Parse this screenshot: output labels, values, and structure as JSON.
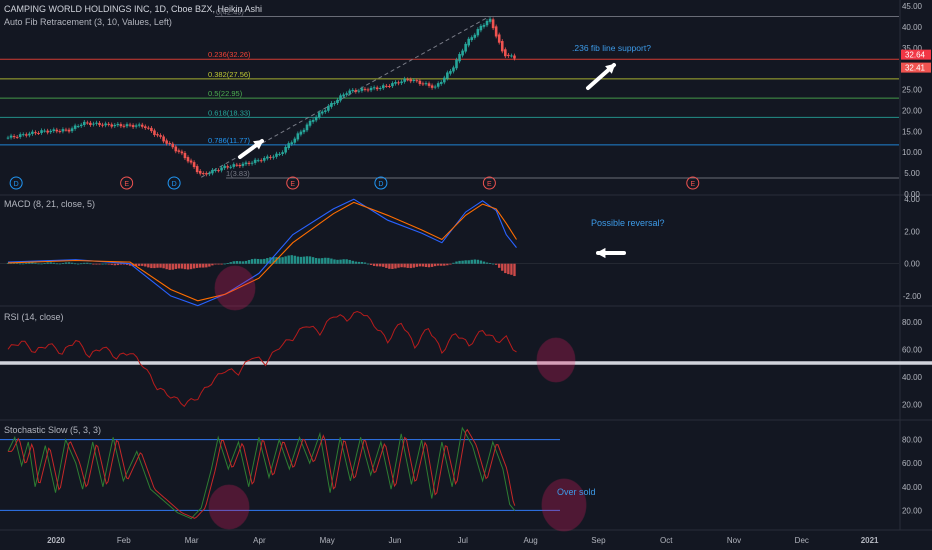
{
  "header": {
    "symbol_line": "CAMPING WORLD HOLDINGS INC, 1D, Cboe BZX, Heikin Ashi",
    "fib_label": "Auto Fib Retracement (3, 10, Values, Left)"
  },
  "colors": {
    "background": "#131722",
    "up": "#26a69a",
    "down": "#ef5350",
    "macd_line": "#2962ff",
    "signal_line": "#ff6d00",
    "rsi_line": "#b71c1c",
    "stoch_k": "#2e7d32",
    "stoch_d": "#c62828",
    "band": "#3179f5",
    "annotation": "#3d9be9",
    "highlight_circle": "#e91e63"
  },
  "chart_data": [
    {
      "type": "candlestick",
      "pane": "price",
      "ylim": [
        0,
        45
      ],
      "y_ticks": [
        "45.00",
        "40.00",
        "35.00",
        "30.00",
        "25.00",
        "20.00",
        "15.00",
        "10.00",
        "5.00",
        "0.00"
      ],
      "x_ticks": [
        "2020",
        "Feb",
        "Mar",
        "Apr",
        "May",
        "Jun",
        "Jul",
        "Aug",
        "Sep",
        "Oct",
        "Nov",
        "Dec",
        "2021"
      ],
      "price_labels": [
        {
          "text": "32.64",
          "value": 32.64
        },
        {
          "text": "32.41",
          "value": 32.41
        }
      ],
      "fib_levels": [
        {
          "label": "0(42.49)",
          "value": 42.49,
          "color": "#787b86"
        },
        {
          "label": "0.236(32.26)",
          "value": 32.26,
          "color": "#f44336"
        },
        {
          "label": "0.382(27.56)",
          "value": 27.56,
          "color": "#c0ca33"
        },
        {
          "label": "0.5(22.95)",
          "value": 22.95,
          "color": "#4caf50"
        },
        {
          "label": "0.618(18.33)",
          "value": 18.33,
          "color": "#26a69a"
        },
        {
          "label": "0.786(11.77)",
          "value": 11.77,
          "color": "#2196f3"
        },
        {
          "label": "1(3.83)",
          "value": 3.83,
          "color": "#787b86"
        }
      ],
      "events": [
        {
          "label": "D",
          "month": 0.12,
          "color": "#2196f3"
        },
        {
          "label": "E",
          "month": 1.75,
          "color": "#ef5350"
        },
        {
          "label": "D",
          "month": 2.45,
          "color": "#2196f3"
        },
        {
          "label": "E",
          "month": 4.2,
          "color": "#ef5350"
        },
        {
          "label": "D",
          "month": 5.5,
          "color": "#2196f3"
        },
        {
          "label": "E",
          "month": 7.1,
          "color": "#ef5350"
        },
        {
          "label": "E",
          "month": 10.1,
          "color": "#ef5350"
        }
      ],
      "closes_keypoints": [
        {
          "month": 0.0,
          "value": 13.5
        },
        {
          "month": 0.5,
          "value": 15.0
        },
        {
          "month": 0.9,
          "value": 15.3
        },
        {
          "month": 1.1,
          "value": 17.0
        },
        {
          "month": 1.5,
          "value": 16.5
        },
        {
          "month": 2.0,
          "value": 16.3
        },
        {
          "month": 2.2,
          "value": 14.0
        },
        {
          "month": 2.6,
          "value": 9.0
        },
        {
          "month": 2.85,
          "value": 4.5
        },
        {
          "month": 3.2,
          "value": 6.5
        },
        {
          "month": 3.5,
          "value": 7.2
        },
        {
          "month": 4.0,
          "value": 9.5
        },
        {
          "month": 4.5,
          "value": 18.0
        },
        {
          "month": 5.0,
          "value": 24.5
        },
        {
          "month": 5.5,
          "value": 25.5
        },
        {
          "month": 5.9,
          "value": 27.5
        },
        {
          "month": 6.3,
          "value": 25.5
        },
        {
          "month": 6.55,
          "value": 30.0
        },
        {
          "month": 6.75,
          "value": 36.0
        },
        {
          "month": 7.0,
          "value": 40.5
        },
        {
          "month": 7.1,
          "value": 42.0
        },
        {
          "month": 7.2,
          "value": 38.0
        },
        {
          "month": 7.3,
          "value": 33.5
        },
        {
          "month": 7.5,
          "value": 32.4
        }
      ]
    },
    {
      "type": "line",
      "pane": "macd",
      "title": "MACD (8, 21, close, 5)",
      "ylim": [
        -2.5,
        4.2
      ],
      "y_ticks": [
        "4.00",
        "2.00",
        "0.00",
        "-2.00"
      ],
      "series": [
        {
          "key": "macd",
          "points": [
            {
              "month": 0,
              "value": 0.1
            },
            {
              "month": 1,
              "value": 0.25
            },
            {
              "month": 1.8,
              "value": 0.0
            },
            {
              "month": 2.4,
              "value": -2.0
            },
            {
              "month": 2.8,
              "value": -2.6
            },
            {
              "month": 3.2,
              "value": -1.9
            },
            {
              "month": 3.7,
              "value": -0.6
            },
            {
              "month": 4.2,
              "value": 1.8
            },
            {
              "month": 4.8,
              "value": 3.4
            },
            {
              "month": 5.1,
              "value": 4.0
            },
            {
              "month": 5.6,
              "value": 2.7
            },
            {
              "month": 6.1,
              "value": 1.9
            },
            {
              "month": 6.4,
              "value": 1.3
            },
            {
              "month": 6.75,
              "value": 3.2
            },
            {
              "month": 7.0,
              "value": 3.9
            },
            {
              "month": 7.2,
              "value": 3.3
            },
            {
              "month": 7.35,
              "value": 1.8
            },
            {
              "month": 7.5,
              "value": 1.0
            }
          ]
        },
        {
          "key": "signal",
          "points": [
            {
              "month": 0,
              "value": 0.05
            },
            {
              "month": 1,
              "value": 0.2
            },
            {
              "month": 1.8,
              "value": 0.1
            },
            {
              "month": 2.4,
              "value": -1.6
            },
            {
              "month": 2.8,
              "value": -2.3
            },
            {
              "month": 3.2,
              "value": -1.9
            },
            {
              "month": 3.7,
              "value": -0.9
            },
            {
              "month": 4.2,
              "value": 1.3
            },
            {
              "month": 4.8,
              "value": 3.1
            },
            {
              "month": 5.1,
              "value": 3.8
            },
            {
              "month": 5.6,
              "value": 3.0
            },
            {
              "month": 6.1,
              "value": 2.1
            },
            {
              "month": 6.4,
              "value": 1.5
            },
            {
              "month": 6.75,
              "value": 3.0
            },
            {
              "month": 7.0,
              "value": 3.7
            },
            {
              "month": 7.2,
              "value": 3.4
            },
            {
              "month": 7.35,
              "value": 2.5
            },
            {
              "month": 7.5,
              "value": 1.5
            }
          ]
        }
      ],
      "histogram_keypoints": [
        {
          "month": 0,
          "value": 0.05
        },
        {
          "month": 1,
          "value": 0.05
        },
        {
          "month": 1.8,
          "value": -0.1
        },
        {
          "month": 2.4,
          "value": -0.35
        },
        {
          "month": 2.8,
          "value": -0.3
        },
        {
          "month": 3.2,
          "value": 0.05
        },
        {
          "month": 3.7,
          "value": 0.3
        },
        {
          "month": 4.2,
          "value": 0.5
        },
        {
          "month": 4.8,
          "value": 0.3
        },
        {
          "month": 5.1,
          "value": 0.2
        },
        {
          "month": 5.6,
          "value": -0.3
        },
        {
          "month": 6.1,
          "value": -0.2
        },
        {
          "month": 6.4,
          "value": -0.15
        },
        {
          "month": 6.75,
          "value": 0.25
        },
        {
          "month": 7.0,
          "value": 0.2
        },
        {
          "month": 7.2,
          "value": -0.1
        },
        {
          "month": 7.35,
          "value": -0.6
        },
        {
          "month": 7.5,
          "value": -0.85
        }
      ],
      "annotation": "Possible reversal?"
    },
    {
      "type": "line",
      "pane": "rsi",
      "title": "RSI (14, close)",
      "ylim": [
        10,
        90
      ],
      "y_ticks": [
        "80.00",
        "60.00",
        "40.00",
        "20.00"
      ],
      "reference_line": 50,
      "series": [
        {
          "key": "rsi",
          "points": [
            {
              "month": 0,
              "value": 60
            },
            {
              "month": 0.2,
              "value": 66
            },
            {
              "month": 0.4,
              "value": 58
            },
            {
              "month": 0.6,
              "value": 64
            },
            {
              "month": 0.8,
              "value": 57
            },
            {
              "month": 1.0,
              "value": 67
            },
            {
              "month": 1.2,
              "value": 55
            },
            {
              "month": 1.4,
              "value": 62
            },
            {
              "month": 1.6,
              "value": 54
            },
            {
              "month": 1.8,
              "value": 58
            },
            {
              "month": 2.0,
              "value": 48
            },
            {
              "month": 2.2,
              "value": 32
            },
            {
              "month": 2.4,
              "value": 26
            },
            {
              "month": 2.6,
              "value": 20
            },
            {
              "month": 2.8,
              "value": 25
            },
            {
              "month": 3.0,
              "value": 36
            },
            {
              "month": 3.2,
              "value": 45
            },
            {
              "month": 3.4,
              "value": 43
            },
            {
              "month": 3.6,
              "value": 55
            },
            {
              "month": 3.8,
              "value": 50
            },
            {
              "month": 4.0,
              "value": 62
            },
            {
              "month": 4.2,
              "value": 68
            },
            {
              "month": 4.4,
              "value": 78
            },
            {
              "month": 4.6,
              "value": 72
            },
            {
              "month": 4.8,
              "value": 85
            },
            {
              "month": 5.0,
              "value": 82
            },
            {
              "month": 5.2,
              "value": 88
            },
            {
              "month": 5.4,
              "value": 78
            },
            {
              "month": 5.6,
              "value": 66
            },
            {
              "month": 5.8,
              "value": 80
            },
            {
              "month": 6.0,
              "value": 62
            },
            {
              "month": 6.2,
              "value": 76
            },
            {
              "month": 6.4,
              "value": 58
            },
            {
              "month": 6.6,
              "value": 72
            },
            {
              "month": 6.8,
              "value": 63
            },
            {
              "month": 7.0,
              "value": 74
            },
            {
              "month": 7.2,
              "value": 66
            },
            {
              "month": 7.35,
              "value": 68
            },
            {
              "month": 7.5,
              "value": 58
            }
          ]
        }
      ]
    },
    {
      "type": "line",
      "pane": "stochastic",
      "title": "Stochastic Slow (5, 3, 3)",
      "ylim": [
        5,
        95
      ],
      "y_ticks": [
        "80.00",
        "60.00",
        "40.00",
        "20.00"
      ],
      "bands": [
        80,
        20
      ],
      "series": [
        {
          "key": "k",
          "points": [
            {
              "month": 0,
              "value": 70
            },
            {
              "month": 0.1,
              "value": 82
            },
            {
              "month": 0.2,
              "value": 58
            },
            {
              "month": 0.3,
              "value": 78
            },
            {
              "month": 0.4,
              "value": 40
            },
            {
              "month": 0.55,
              "value": 75
            },
            {
              "month": 0.7,
              "value": 35
            },
            {
              "month": 0.85,
              "value": 80
            },
            {
              "month": 1.0,
              "value": 60
            },
            {
              "month": 1.1,
              "value": 38
            },
            {
              "month": 1.25,
              "value": 78
            },
            {
              "month": 1.4,
              "value": 40
            },
            {
              "month": 1.55,
              "value": 82
            },
            {
              "month": 1.7,
              "value": 45
            },
            {
              "month": 1.9,
              "value": 70
            },
            {
              "month": 2.1,
              "value": 38
            },
            {
              "month": 2.3,
              "value": 28
            },
            {
              "month": 2.5,
              "value": 18
            },
            {
              "month": 2.7,
              "value": 13
            },
            {
              "month": 2.85,
              "value": 22
            },
            {
              "month": 3.0,
              "value": 55
            },
            {
              "month": 3.1,
              "value": 82
            },
            {
              "month": 3.25,
              "value": 55
            },
            {
              "month": 3.4,
              "value": 78
            },
            {
              "month": 3.55,
              "value": 40
            },
            {
              "month": 3.7,
              "value": 82
            },
            {
              "month": 3.85,
              "value": 48
            },
            {
              "month": 4.0,
              "value": 80
            },
            {
              "month": 4.15,
              "value": 55
            },
            {
              "month": 4.3,
              "value": 82
            },
            {
              "month": 4.45,
              "value": 60
            },
            {
              "month": 4.6,
              "value": 85
            },
            {
              "month": 4.75,
              "value": 35
            },
            {
              "month": 4.9,
              "value": 82
            },
            {
              "month": 5.05,
              "value": 45
            },
            {
              "month": 5.2,
              "value": 82
            },
            {
              "month": 5.35,
              "value": 50
            },
            {
              "month": 5.5,
              "value": 78
            },
            {
              "month": 5.65,
              "value": 38
            },
            {
              "month": 5.8,
              "value": 85
            },
            {
              "month": 5.95,
              "value": 42
            },
            {
              "month": 6.1,
              "value": 80
            },
            {
              "month": 6.25,
              "value": 30
            },
            {
              "month": 6.4,
              "value": 78
            },
            {
              "month": 6.55,
              "value": 40
            },
            {
              "month": 6.7,
              "value": 90
            },
            {
              "month": 6.85,
              "value": 75
            },
            {
              "month": 7.0,
              "value": 45
            },
            {
              "month": 7.15,
              "value": 78
            },
            {
              "month": 7.3,
              "value": 55
            },
            {
              "month": 7.4,
              "value": 25
            },
            {
              "month": 7.5,
              "value": 18
            }
          ]
        }
      ],
      "annotation": "Over sold"
    }
  ]
}
